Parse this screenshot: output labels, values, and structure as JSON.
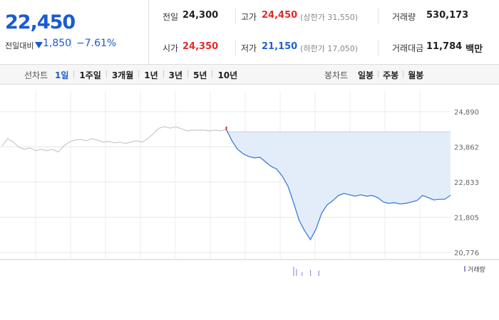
{
  "header": {
    "price": "22,450",
    "change_label": "전일대비",
    "change": "1,850",
    "change_rate": "−7.61%"
  },
  "info": [
    {
      "label": "전일",
      "value": "24,300"
    },
    {
      "label": "고가",
      "value": "24,450",
      "color": "#e22b2b",
      "sub": "(상한가 31,550)"
    },
    {
      "label": "거래량",
      "value": "530,173"
    },
    {
      "label": "시가",
      "value": "24,350",
      "color": "#e22b2b"
    },
    {
      "label": "저가",
      "value": "21,150",
      "color": "#1e63d2",
      "sub": "(하한가 17,050)"
    },
    {
      "label": "거래대금",
      "value": "11,784",
      "unit": "백만"
    }
  ],
  "tabs": {
    "line": {
      "label": "선차트",
      "items": [
        "1일",
        "1주일",
        "3개월",
        "1년",
        "3년",
        "5년",
        "10년"
      ],
      "active": 0
    },
    "candle": {
      "label": "봉차트",
      "items": [
        "일봉",
        "주봉",
        "월봉"
      ]
    }
  },
  "chart_data": {
    "type": "line",
    "x": [
      0,
      1,
      2,
      3,
      4,
      5,
      6,
      7,
      8,
      9,
      10,
      11,
      12,
      13,
      14,
      15,
      16,
      17,
      18,
      19,
      20,
      21,
      22,
      23,
      24,
      25,
      26,
      27,
      28,
      29,
      30,
      31,
      32,
      33,
      34,
      35,
      36,
      37,
      38,
      39,
      40,
      41,
      42,
      43,
      44,
      45,
      46,
      47,
      48,
      49,
      50,
      51,
      52,
      53,
      54,
      55,
      56,
      57,
      58,
      59,
      60,
      61,
      62,
      63,
      64,
      65,
      66,
      67,
      68,
      69,
      70,
      71,
      72,
      73,
      74,
      75,
      76,
      77,
      78,
      79,
      80
    ],
    "xlim": [
      0,
      80
    ],
    "series": [
      {
        "color": "#c8c8c8",
        "values": [
          23890,
          24100,
          24000,
          23850,
          23790,
          23830,
          23750,
          23790,
          23750,
          23790,
          23710,
          23890,
          24000,
          24060,
          24080,
          24040,
          24100,
          24060,
          24000,
          24020,
          23980,
          24000,
          23960,
          24000,
          24040,
          24000,
          24100,
          24250,
          24410,
          24450,
          24410,
          24450,
          24390,
          24330,
          24350,
          24350,
          24350,
          24330,
          24350,
          24330,
          24370,
          null,
          null,
          null,
          null,
          null,
          null,
          null,
          null,
          null,
          null,
          null,
          null,
          null,
          null,
          null,
          null,
          null,
          null,
          null,
          null,
          null,
          null,
          null,
          null,
          null,
          null,
          null,
          null,
          null,
          null,
          null,
          null,
          null,
          null,
          null,
          null,
          null,
          null,
          null,
          null
        ]
      },
      {
        "color": "#2f74d6",
        "values": [
          null,
          null,
          null,
          null,
          null,
          null,
          null,
          null,
          null,
          null,
          null,
          null,
          null,
          null,
          null,
          null,
          null,
          null,
          null,
          null,
          null,
          null,
          null,
          null,
          null,
          null,
          null,
          null,
          null,
          null,
          null,
          null,
          null,
          null,
          null,
          null,
          null,
          null,
          null,
          null,
          24370,
          24040,
          23790,
          23660,
          23580,
          23540,
          23560,
          23420,
          23290,
          23210,
          23000,
          22710,
          22230,
          21710,
          21400,
          21150,
          21460,
          21920,
          22170,
          22290,
          22440,
          22500,
          22460,
          22420,
          22460,
          22420,
          22440,
          22380,
          22250,
          22210,
          22230,
          22190,
          22210,
          22250,
          22290,
          22440,
          22380,
          22310,
          22330,
          22330,
          22450
        ]
      }
    ],
    "reference_line": 24300,
    "fill_color": "#e3edfa",
    "ylim": [
      20568,
      25493
    ],
    "yticks": [
      {
        "value": 24890,
        "label": "24,890"
      },
      {
        "value": 23862,
        "label": "23,862"
      },
      {
        "value": 22833,
        "label": "22,833"
      },
      {
        "value": 21805,
        "label": "21,805"
      },
      {
        "value": 20776,
        "label": "20,776"
      }
    ],
    "grid": true,
    "volume": {
      "name": "거래량",
      "color": "#9b8fd8",
      "x": [
        52,
        52.5,
        53.5,
        55,
        56.5
      ],
      "values": [
        12,
        9,
        5,
        8,
        7
      ],
      "ylim": [
        0,
        15
      ]
    }
  }
}
